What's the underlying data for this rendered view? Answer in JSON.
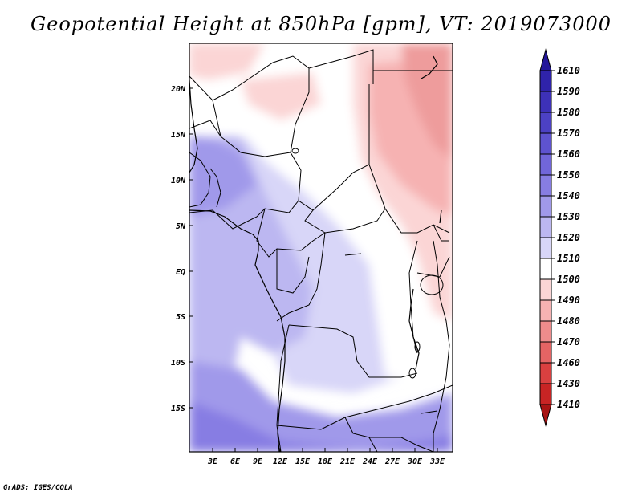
{
  "title": "Geopotential Height at 850hPa [gpm], VT: 2019073000",
  "credit": "GrADS: IGES/COLA",
  "lat_labels": [
    "20N",
    "15N",
    "10N",
    "5N",
    "EQ",
    "5S",
    "10S",
    "15S"
  ],
  "lon_labels": [
    "3E",
    "6E",
    "9E",
    "12E",
    "15E",
    "18E",
    "21E",
    "24E",
    "27E",
    "30E",
    "33E"
  ],
  "colorbar": {
    "levels": [
      "1610",
      "1590",
      "1580",
      "1570",
      "1560",
      "1550",
      "1540",
      "1530",
      "1520",
      "1510",
      "1500",
      "1490",
      "1480",
      "1470",
      "1460",
      "1430",
      "1410"
    ],
    "colors": [
      "#23169a",
      "#2f23aa",
      "#3d31b8",
      "#4c41c4",
      "#5e53d0",
      "#7166da",
      "#877de3",
      "#a099ea",
      "#bcb7f1",
      "#d8d6f8",
      "#ffffff",
      "#fbd5d5",
      "#f6b2b2",
      "#ee8c8c",
      "#e46464",
      "#d94040",
      "#c82424",
      "#a81414"
    ]
  },
  "map": {
    "region": "Central Africa",
    "colors": {
      "ocean_deep": "#bcb7f1",
      "sahel": "#ffffff",
      "sudan_pink": "#fbd5d5",
      "nubia_red": "#f6b2b2",
      "egypt_dark": "#ee9c9c",
      "congo_light": "#d8d6f8",
      "south_blue": "#a099ea",
      "coast_blue": "#877de3"
    }
  }
}
